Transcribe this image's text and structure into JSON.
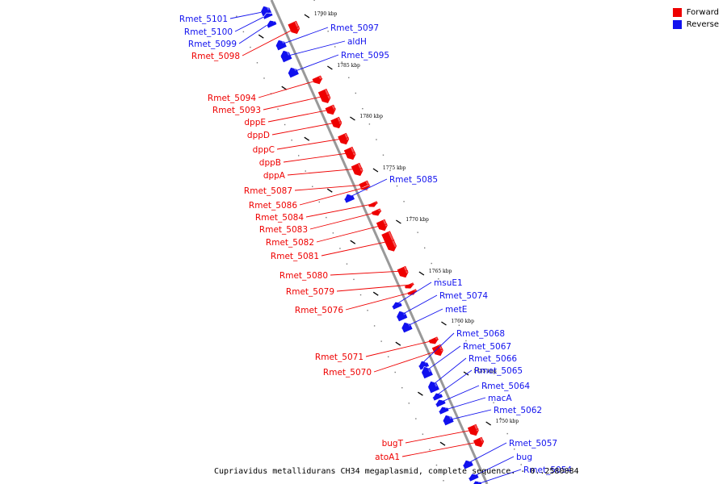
{
  "colors": {
    "forward": "#ee0000",
    "reverse": "#1111ee",
    "backbone": "#999999"
  },
  "legend": [
    {
      "label": "Forward",
      "color": "#ee0000"
    },
    {
      "label": "Reverse",
      "color": "#1111ee"
    }
  ],
  "caption": "Cupriavidus metallidurans CH34 megaplasmid, complete sequence. - 0..2580084",
  "scale_ticks": [
    "1790 kbp",
    "1785 kbp",
    "1780 kbp",
    "1775 kbp",
    "1770 kbp",
    "1765 kbp",
    "1760 kbp",
    "1755 kbp",
    "1750 kbp"
  ],
  "genes": [
    {
      "name": "Rmet_5101",
      "strand": "reverse"
    },
    {
      "name": "Rmet_5100",
      "strand": "reverse"
    },
    {
      "name": "Rmet_5099",
      "strand": "reverse"
    },
    {
      "name": "Rmet_5098",
      "strand": "forward"
    },
    {
      "name": "Rmet_5097",
      "strand": "reverse"
    },
    {
      "name": "aldH",
      "strand": "reverse"
    },
    {
      "name": "Rmet_5095",
      "strand": "reverse"
    },
    {
      "name": "Rmet_5094",
      "strand": "forward"
    },
    {
      "name": "Rmet_5093",
      "strand": "forward"
    },
    {
      "name": "dppE",
      "strand": "forward"
    },
    {
      "name": "dppD",
      "strand": "forward"
    },
    {
      "name": "dppC",
      "strand": "forward"
    },
    {
      "name": "dppB",
      "strand": "forward"
    },
    {
      "name": "dppA",
      "strand": "forward"
    },
    {
      "name": "Rmet_5087",
      "strand": "forward"
    },
    {
      "name": "Rmet_5086",
      "strand": "forward"
    },
    {
      "name": "Rmet_5085",
      "strand": "reverse"
    },
    {
      "name": "Rmet_5084",
      "strand": "forward"
    },
    {
      "name": "Rmet_5083",
      "strand": "forward"
    },
    {
      "name": "Rmet_5082",
      "strand": "forward"
    },
    {
      "name": "Rmet_5081",
      "strand": "forward"
    },
    {
      "name": "Rmet_5080",
      "strand": "forward"
    },
    {
      "name": "Rmet_5079",
      "strand": "forward"
    },
    {
      "name": "Rmet_5076",
      "strand": "forward"
    },
    {
      "name": "msuE1",
      "strand": "reverse"
    },
    {
      "name": "Rmet_5074",
      "strand": "reverse"
    },
    {
      "name": "metE",
      "strand": "reverse"
    },
    {
      "name": "Rmet_5071",
      "strand": "forward"
    },
    {
      "name": "Rmet_5070",
      "strand": "forward"
    },
    {
      "name": "Rmet_5068",
      "strand": "reverse"
    },
    {
      "name": "Rmet_5067",
      "strand": "reverse"
    },
    {
      "name": "Rmet_5066",
      "strand": "reverse"
    },
    {
      "name": "Rmet_5065",
      "strand": "reverse"
    },
    {
      "name": "Rmet_5064",
      "strand": "reverse"
    },
    {
      "name": "macA",
      "strand": "reverse"
    },
    {
      "name": "Rmet_5062",
      "strand": "reverse"
    },
    {
      "name": "bugT",
      "strand": "forward"
    },
    {
      "name": "atoA1",
      "strand": "forward"
    },
    {
      "name": "Rmet_5057",
      "strand": "reverse"
    },
    {
      "name": "bug",
      "strand": "reverse"
    },
    {
      "name": "Rmet_5054",
      "strand": "reverse"
    }
  ]
}
